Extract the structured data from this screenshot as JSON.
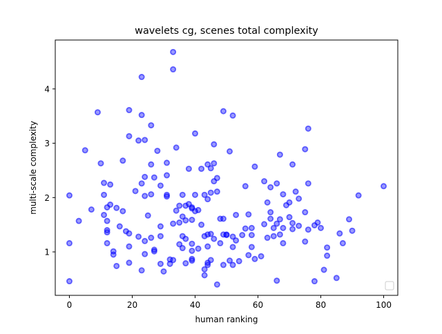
{
  "chart_data": {
    "type": "scatter",
    "title": "wavelets cg, scenes total complexity",
    "xlabel": "human ranking",
    "ylabel": "multi-scale complexity",
    "xlim": [
      -4.5,
      104.5
    ],
    "ylim": [
      0.2,
      4.9
    ],
    "xticks": [
      0,
      20,
      40,
      60,
      80,
      100
    ],
    "yticks": [
      1,
      2,
      3,
      4
    ],
    "grid": false,
    "legend": "lower-right (empty)",
    "marker_color": "#0000ff",
    "marker_alpha": 0.55,
    "series": [
      {
        "points": [
          [
            0,
            0.46
          ],
          [
            0,
            1.16
          ],
          [
            0,
            2.04
          ],
          [
            3,
            1.57
          ],
          [
            5,
            2.87
          ],
          [
            7,
            1.78
          ],
          [
            9,
            3.57
          ],
          [
            10,
            2.63
          ],
          [
            11,
            1.68
          ],
          [
            11,
            2.27
          ],
          [
            11,
            2.05
          ],
          [
            12,
            1.82
          ],
          [
            12,
            1.57
          ],
          [
            12,
            1.4
          ],
          [
            12,
            1.36
          ],
          [
            12,
            1.16
          ],
          [
            13,
            2.24
          ],
          [
            13,
            1.87
          ],
          [
            14,
            1.01
          ],
          [
            14,
            0.95
          ],
          [
            15,
            0.74
          ],
          [
            15,
            1.81
          ],
          [
            16,
            1.47
          ],
          [
            17,
            2.68
          ],
          [
            17,
            1.75
          ],
          [
            18,
            1.38
          ],
          [
            19,
            3.61
          ],
          [
            19,
            3.13
          ],
          [
            19,
            1.34
          ],
          [
            19,
            1.1
          ],
          [
            19,
            0.8
          ],
          [
            21,
            2.12
          ],
          [
            22,
            1.28
          ],
          [
            22,
            3.05
          ],
          [
            23,
            4.22
          ],
          [
            23,
            3.52
          ],
          [
            23,
            2.26
          ],
          [
            23,
            0.66
          ],
          [
            24,
            3.06
          ],
          [
            24,
            2.38
          ],
          [
            24,
            2.03
          ],
          [
            24,
            1.2
          ],
          [
            24,
            0.96
          ],
          [
            25,
            1.67
          ],
          [
            26,
            3.33
          ],
          [
            26,
            2.61
          ],
          [
            26,
            2.06
          ],
          [
            26,
            1.26
          ],
          [
            27,
            2.37
          ],
          [
            27,
            1.04
          ],
          [
            27,
            1.01
          ],
          [
            28,
            2.86
          ],
          [
            29,
            2.22
          ],
          [
            29,
            1.47
          ],
          [
            29,
            1.29
          ],
          [
            29,
            0.78
          ],
          [
            30,
            0.64
          ],
          [
            31,
            2.64
          ],
          [
            31,
            2.41
          ],
          [
            31,
            2.05
          ],
          [
            31,
            2.02
          ],
          [
            32,
            0.86
          ],
          [
            32,
            0.78
          ],
          [
            33,
            4.68
          ],
          [
            33,
            4.36
          ],
          [
            33,
            1.52
          ],
          [
            33,
            0.85
          ],
          [
            34,
            2.92
          ],
          [
            34,
            1.76
          ],
          [
            35,
            1.85
          ],
          [
            35,
            1.54
          ],
          [
            35,
            1.14
          ],
          [
            36,
            2.05
          ],
          [
            36,
            1.65
          ],
          [
            36,
            1.29
          ],
          [
            36,
            1.07
          ],
          [
            37,
            1.85
          ],
          [
            37,
            1.58
          ],
          [
            37,
            1.24
          ],
          [
            37,
            0.79
          ],
          [
            38,
            2.53
          ],
          [
            38,
            1.88
          ],
          [
            39,
            1.82
          ],
          [
            39,
            1.8
          ],
          [
            39,
            1.59
          ],
          [
            39,
            1.15
          ],
          [
            39,
            1.02
          ],
          [
            39,
            0.87
          ],
          [
            39,
            0.84
          ],
          [
            40,
            3.18
          ],
          [
            40,
            2.05
          ],
          [
            40,
            1.75
          ],
          [
            41,
            1.77
          ],
          [
            41,
            1.06
          ],
          [
            42,
            2.53
          ],
          [
            42,
            1.5
          ],
          [
            43,
            2.05
          ],
          [
            43,
            1.29
          ],
          [
            43,
            0.68
          ],
          [
            43,
            0.57
          ],
          [
            44,
            2.61
          ],
          [
            44,
            1.97
          ],
          [
            44,
            1.32
          ],
          [
            44,
            1.1
          ],
          [
            44,
            0.8
          ],
          [
            44,
            0.76
          ],
          [
            45,
            2.54
          ],
          [
            45,
            2.09
          ],
          [
            45,
            1.33
          ],
          [
            45,
            0.85
          ],
          [
            46,
            2.98
          ],
          [
            46,
            2.63
          ],
          [
            46,
            2.3
          ],
          [
            46,
            1.24
          ],
          [
            47,
            2.36
          ],
          [
            47,
            2.11
          ],
          [
            47,
            0.4
          ],
          [
            48,
            1.61
          ],
          [
            48,
            1.16
          ],
          [
            49,
            3.59
          ],
          [
            49,
            1.61
          ],
          [
            49,
            1.32
          ],
          [
            49,
            0.76
          ],
          [
            50,
            1.32
          ],
          [
            50,
            1.31
          ],
          [
            51,
            2.85
          ],
          [
            51,
            0.84
          ],
          [
            52,
            3.51
          ],
          [
            52,
            1.28
          ],
          [
            52,
            1.09
          ],
          [
            52,
            0.76
          ],
          [
            53,
            1.68
          ],
          [
            53,
            1.21
          ],
          [
            54,
            0.83
          ],
          [
            55,
            1.31
          ],
          [
            56,
            2.21
          ],
          [
            56,
            1.43
          ],
          [
            57,
            1.69
          ],
          [
            57,
            0.94
          ],
          [
            58,
            1.44
          ],
          [
            58,
            1.31
          ],
          [
            58,
            1.09
          ],
          [
            59,
            2.57
          ],
          [
            59,
            0.87
          ],
          [
            61,
            0.92
          ],
          [
            62,
            2.3
          ],
          [
            62,
            1.51
          ],
          [
            63,
            1.91
          ],
          [
            63,
            1.26
          ],
          [
            64,
            2.19
          ],
          [
            64,
            1.73
          ],
          [
            64,
            1.61
          ],
          [
            65,
            1.44
          ],
          [
            65,
            1.29
          ],
          [
            66,
            2.26
          ],
          [
            66,
            1.52
          ],
          [
            66,
            0.47
          ],
          [
            67,
            2.79
          ],
          [
            67,
            1.6
          ],
          [
            67,
            1.32
          ],
          [
            68,
            2.06
          ],
          [
            68,
            1.44
          ],
          [
            68,
            1.16
          ],
          [
            69,
            1.86
          ],
          [
            70,
            1.91
          ],
          [
            70,
            1.64
          ],
          [
            71,
            2.61
          ],
          [
            71,
            1.53
          ],
          [
            71,
            1.42
          ],
          [
            72,
            2.11
          ],
          [
            73,
            1.98
          ],
          [
            73,
            1.48
          ],
          [
            75,
            2.89
          ],
          [
            75,
            1.73
          ],
          [
            75,
            1.19
          ],
          [
            76,
            3.27
          ],
          [
            76,
            2.26
          ],
          [
            76,
            1.41
          ],
          [
            78,
            1.49
          ],
          [
            78,
            0.46
          ],
          [
            79,
            1.54
          ],
          [
            80,
            1.44
          ],
          [
            81,
            0.67
          ],
          [
            82,
            1.08
          ],
          [
            82,
            0.93
          ],
          [
            85,
            0.52
          ],
          [
            86,
            1.34
          ],
          [
            87,
            1.16
          ],
          [
            89,
            1.6
          ],
          [
            90,
            1.39
          ],
          [
            92,
            2.04
          ],
          [
            100,
            2.21
          ]
        ]
      }
    ]
  }
}
